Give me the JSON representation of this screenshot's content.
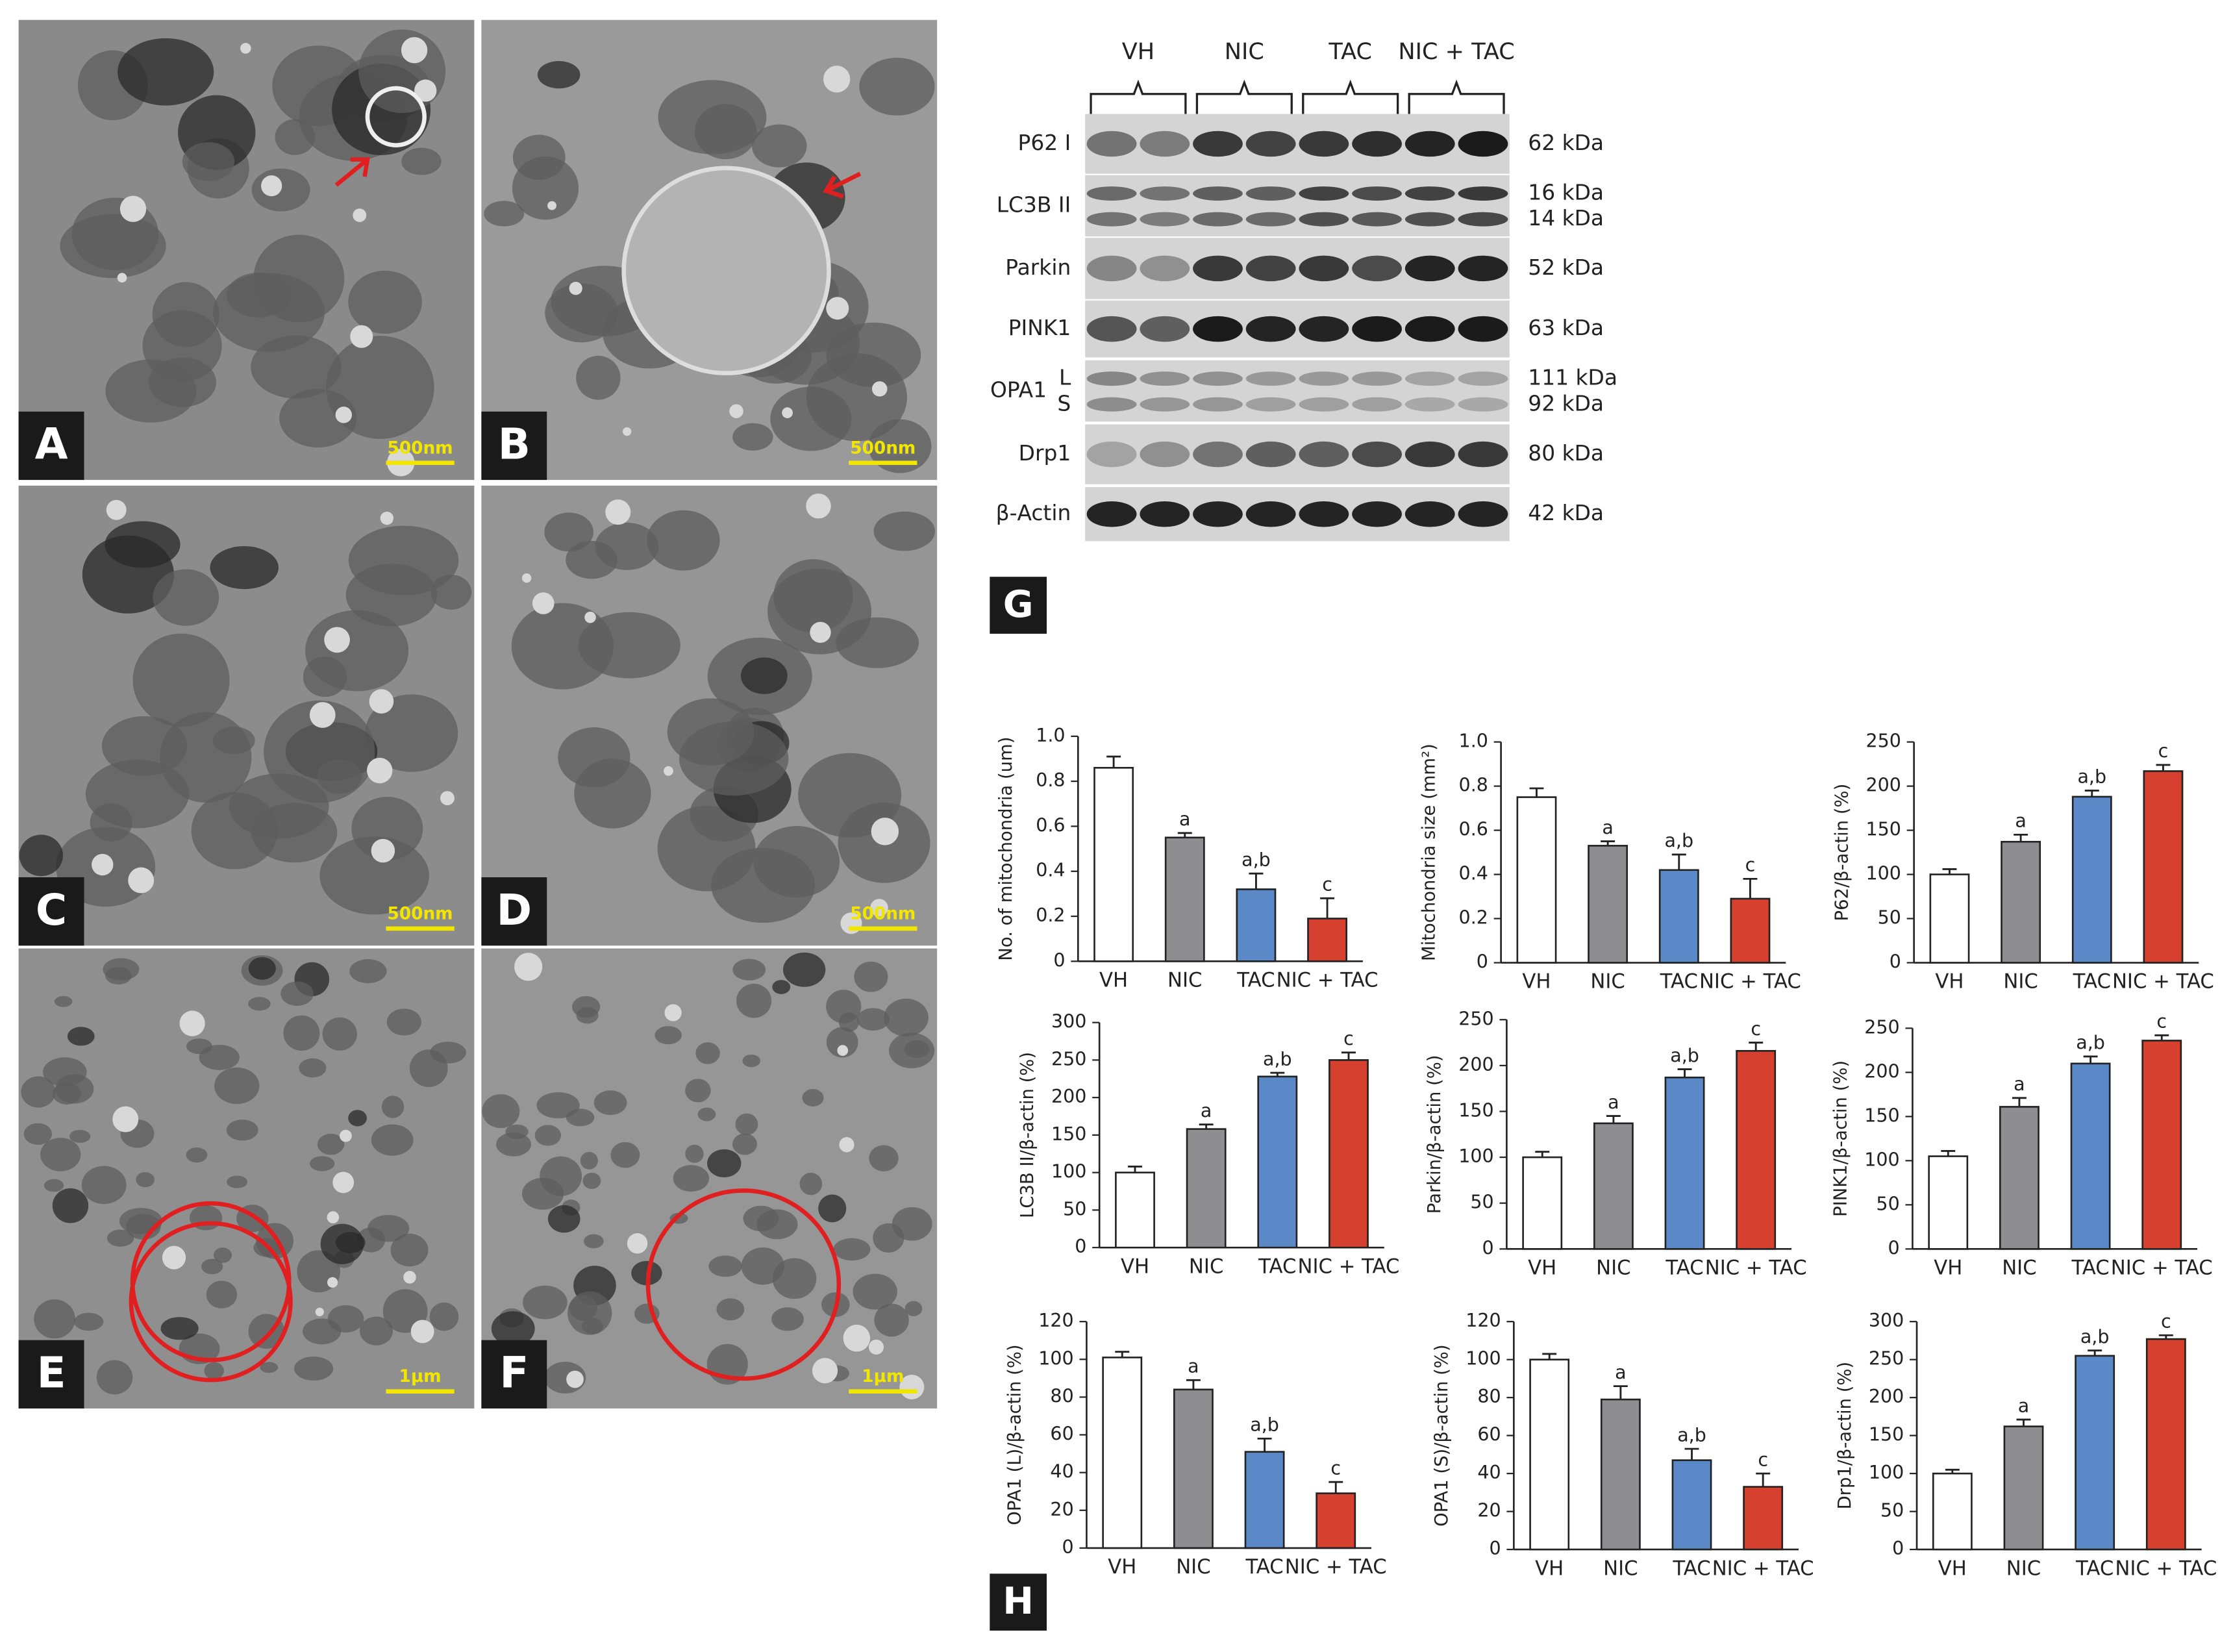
{
  "panels": {
    "labels": [
      "A",
      "B",
      "C",
      "D",
      "E",
      "F",
      "G",
      "H"
    ],
    "scale_bars": [
      "500nm",
      "500nm",
      "500nm",
      "500nm",
      "1μm",
      "1μm"
    ]
  },
  "blot": {
    "groups": [
      "VH",
      "NIC",
      "TAC",
      "NIC + TAC"
    ],
    "rows": [
      {
        "label": "P62 I",
        "kda": [
          "62 kDa"
        ]
      },
      {
        "label": "LC3B II",
        "kda": [
          "16 kDa",
          "14 kDa"
        ]
      },
      {
        "label": "Parkin",
        "kda": [
          "52 kDa"
        ]
      },
      {
        "label": "PINK1",
        "kda": [
          "63 kDa"
        ]
      },
      {
        "label": "OPA1",
        "sublabels": [
          "L",
          "S"
        ],
        "kda": [
          "111 kDa",
          "92 kDa"
        ]
      },
      {
        "label": "Drp1",
        "kda": [
          "80 kDa"
        ]
      },
      {
        "label": "β-Actin",
        "kda": [
          "42 kDa"
        ]
      }
    ]
  },
  "chart_data": [
    {
      "type": "bar",
      "y_label": "No. of mitochondria (um)",
      "categories": [
        "VH",
        "NIC",
        "TAC",
        "NIC + TAC"
      ],
      "colors": [
        "#ffffff",
        "#8e8e90",
        "#5b88c6",
        "#d6402f"
      ],
      "values": [
        0.86,
        0.55,
        0.32,
        0.19
      ],
      "errors": [
        0.05,
        0.02,
        0.07,
        0.09
      ],
      "annotations": [
        null,
        "a",
        "a,b",
        "c"
      ],
      "ylim": [
        0,
        1
      ],
      "yticks": [
        0,
        0.2,
        0.4,
        0.6,
        0.8,
        {
          "value": 1,
          "label": "1.0"
        }
      ]
    },
    {
      "type": "bar",
      "y_label": "Mitochondria size (mm²)",
      "categories": [
        "VH",
        "NIC",
        "TAC",
        "NIC + TAC"
      ],
      "colors": [
        "#ffffff",
        "#8e8e90",
        "#5b88c6",
        "#d6402f"
      ],
      "values": [
        0.75,
        0.53,
        0.42,
        0.29
      ],
      "errors": [
        0.04,
        0.02,
        0.07,
        0.09
      ],
      "annotations": [
        null,
        "a",
        "a,b",
        "c"
      ],
      "ylim": [
        0,
        1
      ],
      "yticks": [
        0,
        0.2,
        0.4,
        0.6,
        0.8,
        {
          "value": 1,
          "label": "1.0"
        }
      ]
    },
    {
      "type": "bar",
      "y_label": "P62/β-actin (%)",
      "categories": [
        "VH",
        "NIC",
        "TAC",
        "NIC + TAC"
      ],
      "colors": [
        "#ffffff",
        "#8e8e90",
        "#5b88c6",
        "#d6402f"
      ],
      "values": [
        100,
        137,
        188,
        217
      ],
      "errors": [
        6,
        8,
        7,
        7
      ],
      "annotations": [
        null,
        "a",
        "a,b",
        "c"
      ],
      "ylim": [
        0,
        250
      ],
      "yticks": [
        0,
        50,
        100,
        150,
        200,
        250
      ]
    },
    {
      "type": "bar",
      "y_label": "LC3B II/β-actin (%)",
      "categories": [
        "VH",
        "NIC",
        "TAC",
        "NIC + TAC"
      ],
      "colors": [
        "#ffffff",
        "#8e8e90",
        "#5b88c6",
        "#d6402f"
      ],
      "values": [
        100,
        158,
        228,
        250
      ],
      "errors": [
        8,
        6,
        5,
        10
      ],
      "annotations": [
        null,
        "a",
        "a,b",
        "c"
      ],
      "ylim": [
        0,
        300
      ],
      "yticks": [
        0,
        50,
        100,
        150,
        200,
        250,
        300
      ]
    },
    {
      "type": "bar",
      "y_label": "Parkin/β-actin (%)",
      "categories": [
        "VH",
        "NIC",
        "TAC",
        "NIC + TAC"
      ],
      "colors": [
        "#ffffff",
        "#8e8e90",
        "#5b88c6",
        "#d6402f"
      ],
      "values": [
        100,
        137,
        187,
        216
      ],
      "errors": [
        6,
        8,
        9,
        9
      ],
      "annotations": [
        null,
        "a",
        "a,b",
        "c"
      ],
      "ylim": [
        0,
        250
      ],
      "yticks": [
        0,
        50,
        100,
        150,
        200,
        250
      ]
    },
    {
      "type": "bar",
      "y_label": "PINK1/β-actin (%)",
      "categories": [
        "VH",
        "NIC",
        "TAC",
        "NIC + TAC"
      ],
      "colors": [
        "#ffffff",
        "#8e8e90",
        "#5b88c6",
        "#d6402f"
      ],
      "values": [
        105,
        161,
        210,
        236
      ],
      "errors": [
        6,
        10,
        8,
        6
      ],
      "annotations": [
        null,
        "a",
        "a,b",
        "c"
      ],
      "ylim": [
        0,
        250
      ],
      "yticks": [
        0,
        50,
        100,
        150,
        200,
        250
      ]
    },
    {
      "type": "bar",
      "y_label": "OPA1 (L)/β-actin (%)",
      "categories": [
        "VH",
        "NIC",
        "TAC",
        "NIC + TAC"
      ],
      "colors": [
        "#ffffff",
        "#8e8e90",
        "#5b88c6",
        "#d6402f"
      ],
      "values": [
        101,
        84,
        51,
        29
      ],
      "errors": [
        3,
        5,
        7,
        6
      ],
      "annotations": [
        null,
        "a",
        "a,b",
        "c"
      ],
      "ylim": [
        0,
        120
      ],
      "yticks": [
        0,
        20,
        40,
        60,
        80,
        100,
        120
      ]
    },
    {
      "type": "bar",
      "y_label": "OPA1 (S)/β-actin (%)",
      "categories": [
        "VH",
        "NIC",
        "TAC",
        "NIC + TAC"
      ],
      "colors": [
        "#ffffff",
        "#8e8e90",
        "#5b88c6",
        "#d6402f"
      ],
      "values": [
        100,
        79,
        47,
        33
      ],
      "errors": [
        3,
        7,
        6,
        7
      ],
      "annotations": [
        null,
        "a",
        "a,b",
        "c"
      ],
      "ylim": [
        0,
        120
      ],
      "yticks": [
        0,
        20,
        40,
        60,
        80,
        100,
        120
      ]
    },
    {
      "type": "bar",
      "y_label": "Drp1/β-actin (%)",
      "categories": [
        "VH",
        "NIC",
        "TAC",
        "NIC + TAC"
      ],
      "colors": [
        "#ffffff",
        "#8e8e90",
        "#5b88c6",
        "#d6402f"
      ],
      "values": [
        100,
        162,
        255,
        277
      ],
      "errors": [
        5,
        9,
        7,
        5
      ],
      "annotations": [
        null,
        "a",
        "a,b",
        "c"
      ],
      "ylim": [
        0,
        300
      ],
      "yticks": [
        0,
        50,
        100,
        150,
        200,
        250,
        300
      ]
    }
  ]
}
